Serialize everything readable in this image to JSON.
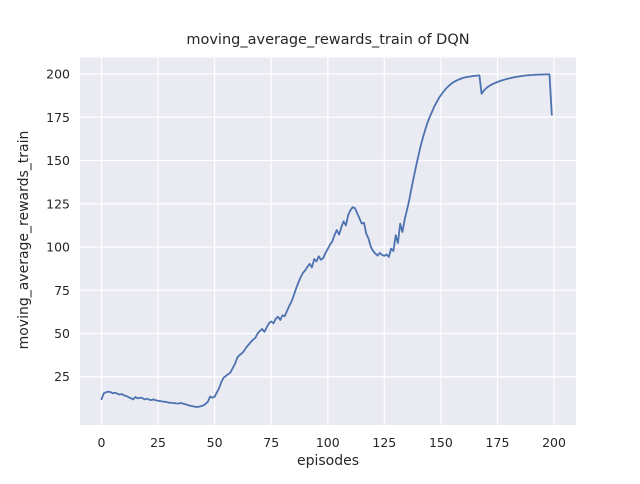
{
  "chart_data": {
    "type": "line",
    "title": "moving_average_rewards_train of DQN",
    "xlabel": "episodes",
    "ylabel": "moving_average_rewards_train",
    "x_ticks": [
      0,
      25,
      50,
      75,
      100,
      125,
      150,
      175,
      200
    ],
    "y_ticks": [
      25,
      50,
      75,
      100,
      125,
      150,
      175,
      200
    ],
    "xlim": [
      -9.5,
      209.7
    ],
    "ylim": [
      -2.9,
      209.5
    ],
    "grid": true,
    "legend": "none",
    "colors": {
      "line": "#4c72b0",
      "axes_background": "#eaeaf2",
      "grid": "#ffffff",
      "text": "#262626",
      "figure_background": "#ffffff"
    },
    "series": [
      {
        "name": "DQN moving average reward (train)",
        "x_start": 0,
        "x_step": 1,
        "values": [
          12.0,
          15.4,
          16.0,
          16.4,
          16.1,
          15.4,
          15.8,
          15.2,
          14.7,
          15.0,
          14.2,
          13.8,
          13.2,
          12.6,
          11.9,
          13.3,
          12.5,
          12.9,
          12.7,
          11.9,
          12.3,
          11.8,
          11.5,
          11.9,
          11.4,
          11.1,
          10.9,
          10.7,
          10.5,
          10.2,
          10.0,
          9.9,
          9.8,
          9.6,
          9.5,
          9.9,
          9.5,
          9.1,
          8.7,
          8.3,
          8.0,
          7.8,
          7.5,
          7.7,
          8.0,
          8.4,
          9.3,
          10.5,
          13.5,
          12.9,
          13.4,
          16.0,
          18.5,
          22.0,
          24.5,
          25.5,
          26.5,
          27.5,
          30.0,
          32.5,
          36.0,
          37.5,
          38.5,
          40.0,
          42.0,
          43.5,
          45.0,
          46.5,
          47.5,
          50.0,
          51.5,
          52.6,
          50.9,
          53.5,
          55.9,
          57.0,
          55.9,
          58.5,
          59.7,
          57.8,
          60.5,
          60.0,
          63.0,
          66.0,
          68.6,
          72.0,
          76.0,
          79.5,
          82.5,
          85.0,
          86.5,
          88.5,
          90.3,
          88.2,
          93.0,
          91.7,
          94.6,
          92.6,
          93.6,
          96.5,
          98.9,
          101.4,
          103.3,
          107.0,
          109.8,
          107.2,
          111.5,
          114.8,
          112.5,
          118.3,
          121.2,
          123.0,
          122.5,
          119.5,
          116.5,
          113.6,
          114.0,
          107.8,
          104.9,
          100.1,
          97.8,
          96.2,
          95.1,
          96.6,
          95.4,
          94.9,
          95.6,
          94.3,
          99.1,
          97.7,
          106.8,
          102.3,
          113.5,
          108.7,
          116.0,
          121.5,
          127.0,
          134.0,
          140.5,
          146.5,
          152.5,
          158.0,
          163.0,
          167.5,
          171.5,
          175.0,
          178.0,
          181.0,
          183.5,
          185.8,
          187.8,
          189.6,
          191.2,
          192.6,
          193.8,
          194.8,
          195.6,
          196.3,
          196.9,
          197.4,
          197.8,
          198.1,
          198.4,
          198.6,
          198.8,
          199.0,
          199.1,
          199.2,
          188.5,
          190.5,
          191.8,
          192.8,
          193.6,
          194.3,
          194.9,
          195.4,
          195.9,
          196.3,
          196.7,
          197.1,
          197.4,
          197.7,
          198.0,
          198.3,
          198.5,
          198.7,
          198.9,
          199.1,
          199.2,
          199.3,
          199.4,
          199.5,
          199.6,
          199.65,
          199.7,
          199.75,
          199.8,
          199.8,
          199.8,
          176.5
        ]
      }
    ]
  }
}
